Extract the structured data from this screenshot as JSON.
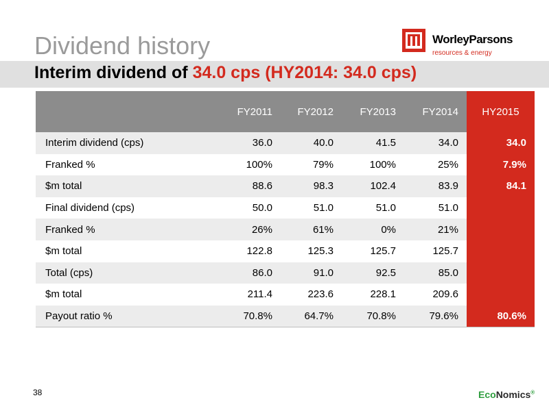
{
  "title": "Dividend history",
  "subtitle": {
    "prefix": "Interim dividend of ",
    "highlight": "34.0 cps (HY2014: 34.0 cps)"
  },
  "logo": {
    "name": "WorleyParsons",
    "tagline": "resources & energy"
  },
  "table": {
    "columns": [
      "",
      "FY2011",
      "FY2012",
      "FY2013",
      "FY2014",
      "HY2015"
    ],
    "rows": [
      {
        "label": "Interim dividend (cps)",
        "values": [
          "36.0",
          "40.0",
          "41.5",
          "34.0",
          "34.0"
        ]
      },
      {
        "label": "Franked %",
        "values": [
          "100%",
          "79%",
          "100%",
          "25%",
          "7.9%"
        ]
      },
      {
        "label": "$m total",
        "values": [
          "88.6",
          "98.3",
          "102.4",
          "83.9",
          "84.1"
        ]
      },
      {
        "label": "Final dividend (cps)",
        "values": [
          "50.0",
          "51.0",
          "51.0",
          "51.0",
          ""
        ]
      },
      {
        "label": "Franked %",
        "values": [
          "26%",
          "61%",
          "0%",
          "21%",
          ""
        ]
      },
      {
        "label": "$m total",
        "values": [
          "122.8",
          "125.3",
          "125.7",
          "125.7",
          ""
        ]
      },
      {
        "label": "Total (cps)",
        "values": [
          "86.0",
          "91.0",
          "92.5",
          "85.0",
          ""
        ]
      },
      {
        "label": "$m total",
        "values": [
          "211.4",
          "223.6",
          "228.1",
          "209.6",
          ""
        ]
      },
      {
        "label": "Payout ratio %",
        "values": [
          "70.8%",
          "64.7%",
          "70.8%",
          "79.6%",
          "80.6%"
        ]
      }
    ]
  },
  "page_number": "38",
  "footer_logo": {
    "part1": "Eco",
    "part2": "Nomics",
    "mark": "®"
  },
  "colors": {
    "accent_red": "#d32a1e",
    "header_gray": "#8c8c8c",
    "title_gray": "#9a9a9a"
  }
}
